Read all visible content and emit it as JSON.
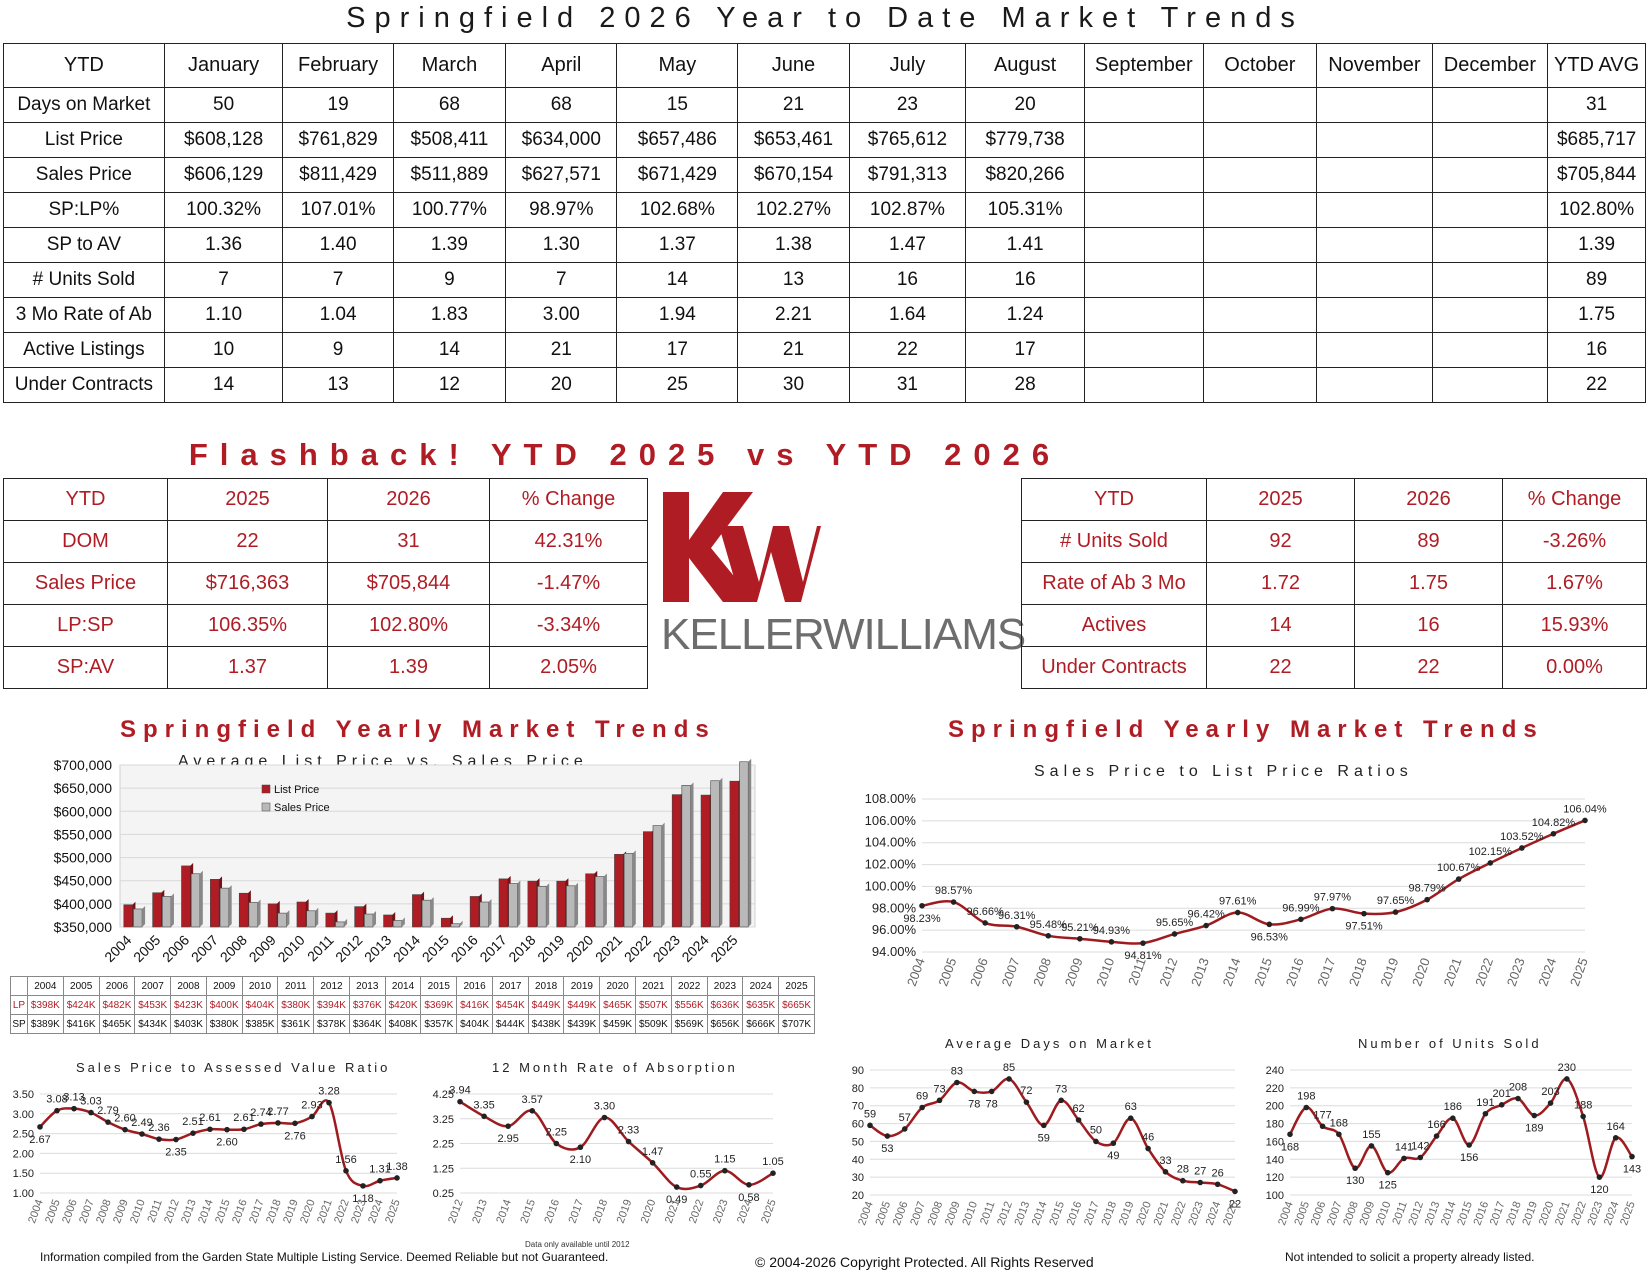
{
  "title": "Springfield 2026 Year to Date Market Trends",
  "ytd_table": {
    "headers": [
      "YTD",
      "January",
      "February",
      "March",
      "April",
      "May",
      "June",
      "July",
      "August",
      "September",
      "October",
      "November",
      "December",
      "YTD AVG"
    ],
    "rows": [
      [
        "Days on Market",
        "50",
        "19",
        "68",
        "68",
        "15",
        "21",
        "23",
        "20",
        "",
        "",
        "",
        "",
        "31"
      ],
      [
        "List Price",
        "$608,128",
        "$761,829",
        "$508,411",
        "$634,000",
        "$657,486",
        "$653,461",
        "$765,612",
        "$779,738",
        "",
        "",
        "",
        "",
        "$685,717"
      ],
      [
        "Sales Price",
        "$606,129",
        "$811,429",
        "$511,889",
        "$627,571",
        "$671,429",
        "$670,154",
        "$791,313",
        "$820,266",
        "",
        "",
        "",
        "",
        "$705,844"
      ],
      [
        "SP:LP%",
        "100.32%",
        "107.01%",
        "100.77%",
        "98.97%",
        "102.68%",
        "102.27%",
        "102.87%",
        "105.31%",
        "",
        "",
        "",
        "",
        "102.80%"
      ],
      [
        "SP to AV",
        "1.36",
        "1.40",
        "1.39",
        "1.30",
        "1.37",
        "1.38",
        "1.47",
        "1.41",
        "",
        "",
        "",
        "",
        "1.39"
      ],
      [
        "# Units Sold",
        "7",
        "7",
        "9",
        "7",
        "14",
        "13",
        "16",
        "16",
        "",
        "",
        "",
        "",
        "89"
      ],
      [
        "3 Mo Rate of Ab",
        "1.10",
        "1.04",
        "1.83",
        "3.00",
        "1.94",
        "2.21",
        "1.64",
        "1.24",
        "",
        "",
        "",
        "",
        "1.75"
      ],
      [
        "Active Listings",
        "10",
        "9",
        "14",
        "21",
        "17",
        "21",
        "22",
        "17",
        "",
        "",
        "",
        "",
        "16"
      ],
      [
        "Under Contracts",
        "14",
        "13",
        "12",
        "20",
        "25",
        "30",
        "31",
        "28",
        "",
        "",
        "",
        "",
        "22"
      ]
    ]
  },
  "flashback_title": "Flashback!  YTD 2025 vs YTD 2026",
  "flash_left": {
    "headers": [
      "YTD",
      "2025",
      "2026",
      "% Change"
    ],
    "rows": [
      [
        "DOM",
        "22",
        "31",
        "42.31%"
      ],
      [
        "Sales Price",
        "$716,363",
        "$705,844",
        "-1.47%"
      ],
      [
        "LP:SP",
        "106.35%",
        "102.80%",
        "-3.34%"
      ],
      [
        "SP:AV",
        "1.37",
        "1.39",
        "2.05%"
      ]
    ]
  },
  "flash_right": {
    "headers": [
      "YTD",
      "2025",
      "2026",
      "% Change"
    ],
    "rows": [
      [
        "# Units Sold",
        "92",
        "89",
        "-3.26%"
      ],
      [
        "Rate of Ab 3 Mo",
        "1.72",
        "1.75",
        "1.67%"
      ],
      [
        "Actives",
        "14",
        "16",
        "15.93%"
      ],
      [
        "Under Contracts",
        "22",
        "22",
        "0.00%"
      ]
    ]
  },
  "logo": {
    "text": "KELLERWILLIAMS",
    "mark": "kw",
    "color": "#b01c24"
  },
  "section_titles": {
    "left": "Springfield Yearly Market Trends",
    "right": "Springfield Yearly Market Trends"
  },
  "footer": {
    "left": "Information compiled from the Garden State Multiple Listing Service.  Deemed Reliable but not Guaranteed.",
    "center": "© 2004-2026 Copyright Protected.  All Rights Reserved",
    "right": "Not intended to solicit a property already listed.",
    "absorption_note": "Data only available until 2012"
  },
  "colors": {
    "accent": "#b01c24",
    "gray_bar": "#b9b9b9",
    "line": "#9e1b1f"
  },
  "chart_data": [
    {
      "id": "list-vs-sales",
      "type": "bar",
      "title": "Average List Price vs. Sales Price",
      "categories": [
        "2004",
        "2005",
        "2006",
        "2007",
        "2008",
        "2009",
        "2010",
        "2011",
        "2012",
        "2013",
        "2014",
        "2015",
        "2016",
        "2017",
        "2018",
        "2019",
        "2020",
        "2021",
        "2022",
        "2023",
        "2024",
        "2025"
      ],
      "series": [
        {
          "name": "List Price",
          "values": [
            398,
            424,
            482,
            453,
            423,
            400,
            404,
            380,
            394,
            376,
            420,
            369,
            416,
            454,
            449,
            449,
            465,
            507,
            556,
            636,
            635,
            665
          ]
        },
        {
          "name": "Sales Price",
          "values": [
            389,
            416,
            465,
            434,
            403,
            380,
            385,
            361,
            378,
            364,
            408,
            357,
            404,
            444,
            438,
            439,
            459,
            509,
            569,
            656,
            666,
            707
          ]
        }
      ],
      "unit": "K",
      "ylim": [
        350000,
        700000
      ],
      "yticks": [
        "$350,000",
        "$400,000",
        "$450,000",
        "$500,000",
        "$550,000",
        "$600,000",
        "$650,000",
        "$700,000"
      ],
      "table_rows": [
        {
          "label": "LP",
          "values": [
            "$398K",
            "$424K",
            "$482K",
            "$453K",
            "$423K",
            "$400K",
            "$404K",
            "$380K",
            "$394K",
            "$376K",
            "$420K",
            "$369K",
            "$416K",
            "$454K",
            "$449K",
            "$449K",
            "$465K",
            "$507K",
            "$556K",
            "$636K",
            "$635K",
            "$665K"
          ]
        },
        {
          "label": "SP",
          "values": [
            "$389K",
            "$416K",
            "$465K",
            "$434K",
            "$403K",
            "$380K",
            "$385K",
            "$361K",
            "$378K",
            "$364K",
            "$408K",
            "$357K",
            "$404K",
            "$444K",
            "$438K",
            "$439K",
            "$459K",
            "$509K",
            "$569K",
            "$656K",
            "$666K",
            "$707K"
          ]
        }
      ]
    },
    {
      "id": "sp-lp-ratio",
      "type": "line",
      "title": "Sales Price to List Price Ratios",
      "x": [
        "2004",
        "2005",
        "2006",
        "2007",
        "2008",
        "2009",
        "2010",
        "2011",
        "2012",
        "2013",
        "2014",
        "2015",
        "2016",
        "2017",
        "2018",
        "2019",
        "2020",
        "2021",
        "2022",
        "2023",
        "2024",
        "2025"
      ],
      "values": [
        98.23,
        98.57,
        96.66,
        96.31,
        95.48,
        95.21,
        94.93,
        94.81,
        95.65,
        96.42,
        97.61,
        96.53,
        96.99,
        97.97,
        97.51,
        97.65,
        98.79,
        100.67,
        102.15,
        103.52,
        104.82,
        106.04
      ],
      "labels": [
        "98.23%",
        "98.57%",
        "96.66%",
        "96.31%",
        "95.48%",
        "95.21%",
        "94.93%",
        "94.81%",
        "95.65%",
        "96.42%",
        "97.61%",
        "96.53%",
        "96.99%",
        "97.97%",
        "97.51%",
        "97.65%",
        "98.79%",
        "100.67%",
        "102.15%",
        "103.52%",
        "104.82%",
        "106.04%"
      ],
      "ylim": [
        94,
        108
      ],
      "yticks": [
        "94.00%",
        "96.00%",
        "98.00%",
        "100.00%",
        "102.00%",
        "104.00%",
        "106.00%",
        "108.00%"
      ]
    },
    {
      "id": "sp-av-ratio",
      "type": "line",
      "title": "Sales Price to Assessed Value Ratio",
      "x": [
        "2004",
        "2005",
        "2006",
        "2007",
        "2008",
        "2009",
        "2010",
        "2011",
        "2012",
        "2013",
        "2014",
        "2015",
        "2016",
        "2017",
        "2018",
        "2019",
        "2020",
        "2021",
        "2022",
        "2023",
        "2024",
        "2025"
      ],
      "values": [
        2.67,
        3.08,
        3.13,
        3.03,
        2.79,
        2.6,
        2.49,
        2.36,
        2.35,
        2.51,
        2.61,
        2.6,
        2.61,
        2.74,
        2.77,
        2.76,
        2.93,
        3.28,
        1.56,
        1.18,
        1.31,
        1.38
      ],
      "labels": [
        "2.67",
        "3.08",
        "3.13",
        "3.03",
        "2.79",
        "2.60",
        "2.49",
        "2.36",
        "2.35",
        "2.51",
        "2.61",
        "2.60",
        "2.61",
        "2.74",
        "2.77",
        "2.76",
        "2.93",
        "3.28",
        "1.56",
        "1.18",
        "1.31",
        "1.38"
      ],
      "ylim": [
        1.0,
        3.5
      ],
      "yticks": [
        "1.00",
        "1.50",
        "2.00",
        "2.50",
        "3.00",
        "3.50"
      ]
    },
    {
      "id": "rate-absorption",
      "type": "line",
      "title": "12 Month Rate of Absorption",
      "x": [
        "2012",
        "2013",
        "2014",
        "2015",
        "2016",
        "2017",
        "2018",
        "2019",
        "2020",
        "2021",
        "2022",
        "2023",
        "2024",
        "2025"
      ],
      "values": [
        3.94,
        3.35,
        2.95,
        3.57,
        2.25,
        2.1,
        3.3,
        2.33,
        1.47,
        0.49,
        0.55,
        1.15,
        0.58,
        1.05
      ],
      "labels": [
        "3.94",
        "3.35",
        "2.95",
        "3.57",
        "2.25",
        "2.10",
        "3.30",
        "2.33",
        "1.47",
        "0.49",
        "0.55",
        "1.15",
        "0.58",
        "1.05"
      ],
      "ylim": [
        0.25,
        4.25
      ],
      "yticks": [
        "0.25",
        "1.25",
        "2.25",
        "3.25",
        "4.25"
      ]
    },
    {
      "id": "avg-dom",
      "type": "line",
      "title": "Average Days on Market",
      "x": [
        "2004",
        "2005",
        "2006",
        "2007",
        "2008",
        "2009",
        "2010",
        "2011",
        "2012",
        "2013",
        "2014",
        "2015",
        "2016",
        "2017",
        "2018",
        "2019",
        "2020",
        "2021",
        "2022",
        "2023",
        "2024",
        "2025"
      ],
      "values": [
        59,
        53,
        57,
        69,
        73,
        83,
        78,
        78,
        85,
        72,
        59,
        73,
        62,
        50,
        49,
        63,
        46,
        33,
        28,
        27,
        26,
        22
      ],
      "labels": [
        "59",
        "53",
        "57",
        "69",
        "73",
        "83",
        "78",
        "78",
        "85",
        "72",
        "59",
        "73",
        "62",
        "50",
        "49",
        "63",
        "46",
        "33",
        "28",
        "27",
        "26",
        "22"
      ],
      "ylim": [
        20,
        90
      ],
      "yticks": [
        "20",
        "30",
        "40",
        "50",
        "60",
        "70",
        "80",
        "90"
      ]
    },
    {
      "id": "units-sold",
      "type": "line",
      "title": "Number of Units Sold",
      "x": [
        "2004",
        "2005",
        "2006",
        "2007",
        "2008",
        "2009",
        "2010",
        "2011",
        "2012",
        "2013",
        "2014",
        "2015",
        "2016",
        "2017",
        "2018",
        "2019",
        "2020",
        "2021",
        "2022",
        "2023",
        "2024",
        "2025"
      ],
      "values": [
        168,
        198,
        177,
        168,
        130,
        155,
        125,
        141,
        142,
        166,
        186,
        156,
        191,
        201,
        208,
        189,
        203,
        230,
        188,
        120,
        164,
        143
      ],
      "labels": [
        "168",
        "198",
        "177",
        "168",
        "130",
        "155",
        "125",
        "141",
        "142",
        "166",
        "186",
        "156",
        "191",
        "201",
        "208",
        "189",
        "203",
        "230",
        "188",
        "120",
        "164",
        "143"
      ],
      "ylim": [
        100,
        240
      ],
      "yticks": [
        "100",
        "120",
        "140",
        "160",
        "180",
        "200",
        "220",
        "240"
      ]
    }
  ]
}
